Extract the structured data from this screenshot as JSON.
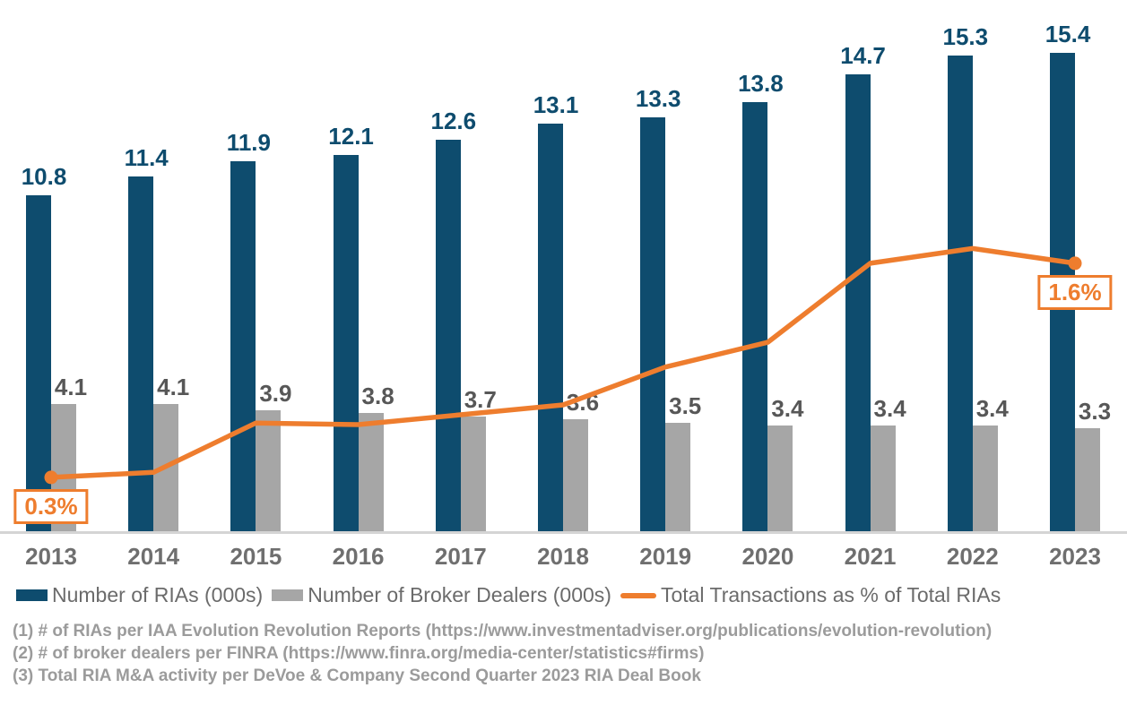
{
  "chart_data": {
    "type": "bar",
    "subtype": "combo-bar-line",
    "categories": [
      "2013",
      "2014",
      "2015",
      "2016",
      "2017",
      "2018",
      "2019",
      "2020",
      "2021",
      "2022",
      "2023"
    ],
    "series": [
      {
        "name": "Number of RIAs (000s)",
        "type": "bar",
        "color": "#0E4C6E",
        "values": [
          10.8,
          11.4,
          11.9,
          12.1,
          12.6,
          13.1,
          13.3,
          13.8,
          14.7,
          15.3,
          15.4
        ]
      },
      {
        "name": "Number of Broker Dealers (000s)",
        "type": "bar",
        "color": "#A6A6A6",
        "values": [
          4.1,
          4.1,
          3.9,
          3.8,
          3.7,
          3.6,
          3.5,
          3.4,
          3.4,
          3.4,
          3.3
        ]
      },
      {
        "name": "Total Transactions as % of Total RIAs",
        "type": "line",
        "color": "#EE7D2E",
        "values": [
          0.3,
          0.33,
          0.63,
          0.62,
          0.68,
          0.74,
          0.97,
          1.12,
          1.6,
          1.69,
          1.6
        ],
        "values_note": "only first and last points carry data labels; intermediate values estimated from line position",
        "point_labels": [
          {
            "index": 0,
            "text": "0.3%"
          },
          {
            "index": 10,
            "text": "1.6%"
          }
        ],
        "marker_indices": [
          0,
          10
        ]
      }
    ],
    "axes": {
      "x_label_color": "#6F6F6F",
      "left_axis_implied_range": [
        0,
        17
      ],
      "right_axis_implied_range_pct": [
        0,
        2
      ],
      "gridlines": false,
      "axis_line_color": "#D4D4D4"
    },
    "legend_position": "bottom",
    "title": ""
  },
  "footnotes": [
    "(1) # of RIAs per IAA Evolution Revolution Reports (https://www.investmentadviser.org/publications/evolution-revolution)",
    "(2) # of broker dealers per FINRA (https://www.finra.org/media-center/statistics#firms)",
    "(3) Total RIA M&A activity per DeVoe & Company Second Quarter 2023 RIA Deal Book"
  ],
  "colors": {
    "ria_bar": "#0E4C6E",
    "broker_dealer_bar": "#A6A6A6",
    "transactions_line": "#EE7D2E",
    "ria_label_text": "#0E4C6E",
    "broker_dealer_label_text": "#575757",
    "year_label_text": "#6F6F6F",
    "legend_text": "#6B6B6B",
    "footnote_text": "#9B9B9B",
    "axis_line": "#D4D4D4",
    "background": "#FFFFFF"
  }
}
